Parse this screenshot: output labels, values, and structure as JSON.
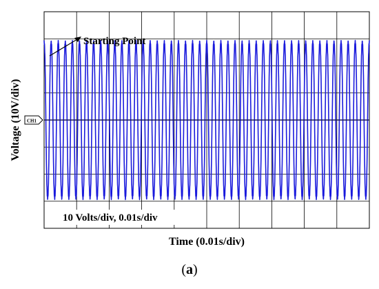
{
  "chart_data": {
    "type": "line",
    "xlabel": "Time (0.01s/div)",
    "ylabel": "Voltage (10V/div)",
    "channel_marker": "CH1",
    "annotation": "Starting Point",
    "scale_note": "10 Volts/div, 0.01s/div",
    "grid": true,
    "divisions": {
      "x": 10,
      "y": 8
    },
    "xlim": [
      0,
      0.1
    ],
    "ylim": [
      -40,
      40
    ],
    "series": [
      {
        "color": "#1a1adc",
        "frequency_hz": 460,
        "amplitude_v": 30,
        "offset_v": 0
      }
    ],
    "zero_line_color": "#1a1a5a"
  },
  "caption": {
    "open": "(",
    "letter": "a",
    "close": ")"
  }
}
